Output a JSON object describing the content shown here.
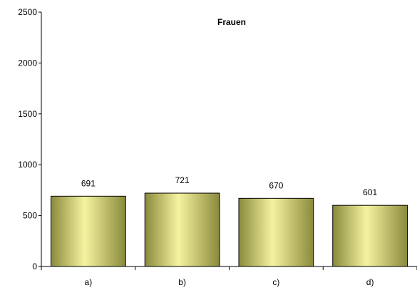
{
  "chart_data": {
    "type": "bar",
    "title": "Frauen",
    "categories": [
      "a)",
      "b)",
      "c)",
      "d)"
    ],
    "series": [
      {
        "values": [
          691,
          721,
          670,
          601
        ]
      }
    ],
    "data_labels": [
      "691",
      "721",
      "670",
      "601"
    ],
    "ylim": [
      0,
      2500
    ],
    "yticks": [
      0,
      500,
      1000,
      1500,
      2000,
      2500
    ],
    "ytick_labels": [
      "0",
      "500",
      "1000",
      "1500",
      "2000",
      "2500"
    ],
    "xlabel": "",
    "ylabel": "",
    "grid": false,
    "legend": "none",
    "colors": {
      "bar_dark": "#8a8a3c",
      "bar_light": "#f4f4a0",
      "bar_stroke": "#000000",
      "axis": "#000000"
    }
  }
}
